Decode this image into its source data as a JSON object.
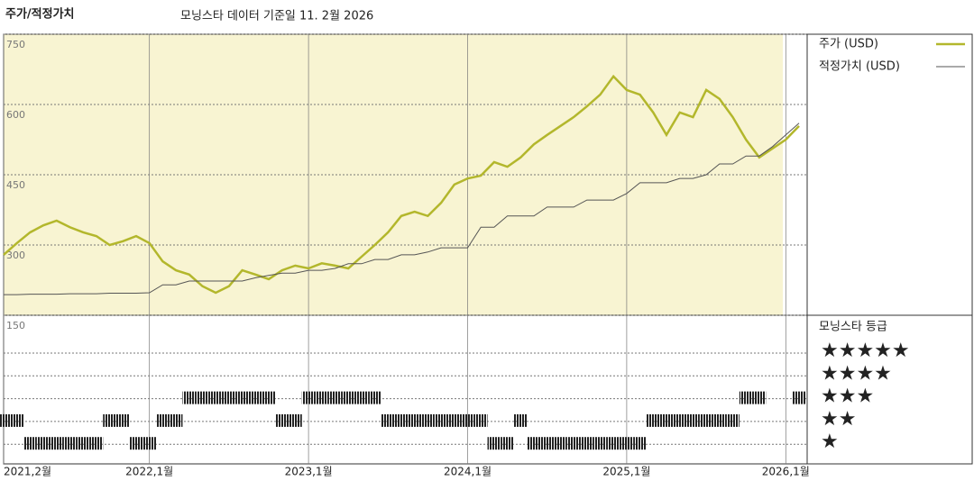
{
  "chart_data": {
    "type": "line",
    "title": "주가/적정가치",
    "subtitle": "모닝스타 데이터 기준일 11. 2월 2026",
    "x": [
      "2021-02",
      "2021-03",
      "2021-04",
      "2021-05",
      "2021-06",
      "2021-07",
      "2021-08",
      "2021-09",
      "2021-10",
      "2021-11",
      "2021-12",
      "2022-01",
      "2022-02",
      "2022-03",
      "2022-04",
      "2022-05",
      "2022-06",
      "2022-07",
      "2022-08",
      "2022-09",
      "2022-10",
      "2022-11",
      "2022-12",
      "2023-01",
      "2023-02",
      "2023-03",
      "2023-04",
      "2023-05",
      "2023-06",
      "2023-07",
      "2023-08",
      "2023-09",
      "2023-10",
      "2023-11",
      "2023-12",
      "2024-01",
      "2024-02",
      "2024-03",
      "2024-04",
      "2024-05",
      "2024-06",
      "2024-07",
      "2024-08",
      "2024-09",
      "2024-10",
      "2024-11",
      "2024-12",
      "2025-01",
      "2025-02",
      "2025-03",
      "2025-04",
      "2025-05",
      "2025-06",
      "2025-07",
      "2025-08",
      "2025-09",
      "2025-10",
      "2025-11",
      "2025-12",
      "2026-01",
      "2026-02"
    ],
    "series": [
      {
        "name": "주가 (USD)",
        "color": "#b3b72c",
        "values": [
          279,
          304,
          327,
          342,
          352,
          338,
          327,
          319,
          300,
          308,
          319,
          304,
          265,
          246,
          237,
          212,
          198,
          212,
          246,
          237,
          227,
          246,
          256,
          250,
          261,
          256,
          250,
          275,
          300,
          327,
          362,
          371,
          362,
          390,
          429,
          442,
          448,
          477,
          467,
          487,
          515,
          535,
          554,
          573,
          596,
          621,
          660,
          631,
          621,
          583,
          535,
          583,
          573,
          631,
          612,
          573,
          525,
          487,
          506,
          525,
          554
        ]
      },
      {
        "name": "적정가치 (USD)",
        "color": "#555555",
        "values": [
          194,
          194,
          195,
          195,
          195,
          196,
          196,
          196,
          197,
          197,
          197,
          198,
          215,
          215,
          223,
          223,
          223,
          223,
          223,
          230,
          235,
          240,
          240,
          246,
          246,
          250,
          260,
          260,
          269,
          269,
          279,
          279,
          285,
          294,
          294,
          294,
          338,
          338,
          362,
          362,
          362,
          381,
          381,
          381,
          396,
          396,
          396,
          410,
          433,
          433,
          433,
          442,
          442,
          450,
          473,
          473,
          490,
          490,
          510,
          535,
          560
        ]
      }
    ],
    "ylim": [
      150,
      750
    ],
    "yticks": [
      750,
      600,
      450,
      300,
      150
    ],
    "xticks": [
      {
        "value": "2021-02",
        "label": "2021,2월"
      },
      {
        "value": "2022-01",
        "label": "2022,1월"
      },
      {
        "value": "2023-01",
        "label": "2023,1월"
      },
      {
        "value": "2024-01",
        "label": "2024,1월"
      },
      {
        "value": "2025-01",
        "label": "2025,1월"
      },
      {
        "value": "2026-01",
        "label": "2026,1월"
      }
    ],
    "grid": true,
    "rating": {
      "title": "모닝스타 등급",
      "color": "#222222",
      "ticks": [
        {
          "value": 5,
          "label": "★★★★★"
        },
        {
          "value": 4,
          "label": "★★★★"
        },
        {
          "value": 3,
          "label": "★★★"
        },
        {
          "value": 2,
          "label": "★★"
        },
        {
          "value": 1,
          "label": "★"
        }
      ],
      "values": [
        2,
        2,
        1,
        1,
        1,
        1,
        1,
        1,
        2,
        2,
        1,
        1,
        2,
        2,
        3,
        3,
        3,
        3,
        3,
        3,
        3,
        2,
        2,
        3,
        3,
        3,
        3,
        3,
        3,
        2,
        2,
        2,
        2,
        2,
        2,
        2,
        2,
        1,
        1,
        2,
        1,
        1,
        1,
        1,
        1,
        1,
        1,
        1,
        1,
        2,
        2,
        2,
        2,
        2,
        2,
        2,
        3,
        3,
        null,
        null,
        3
      ]
    }
  }
}
